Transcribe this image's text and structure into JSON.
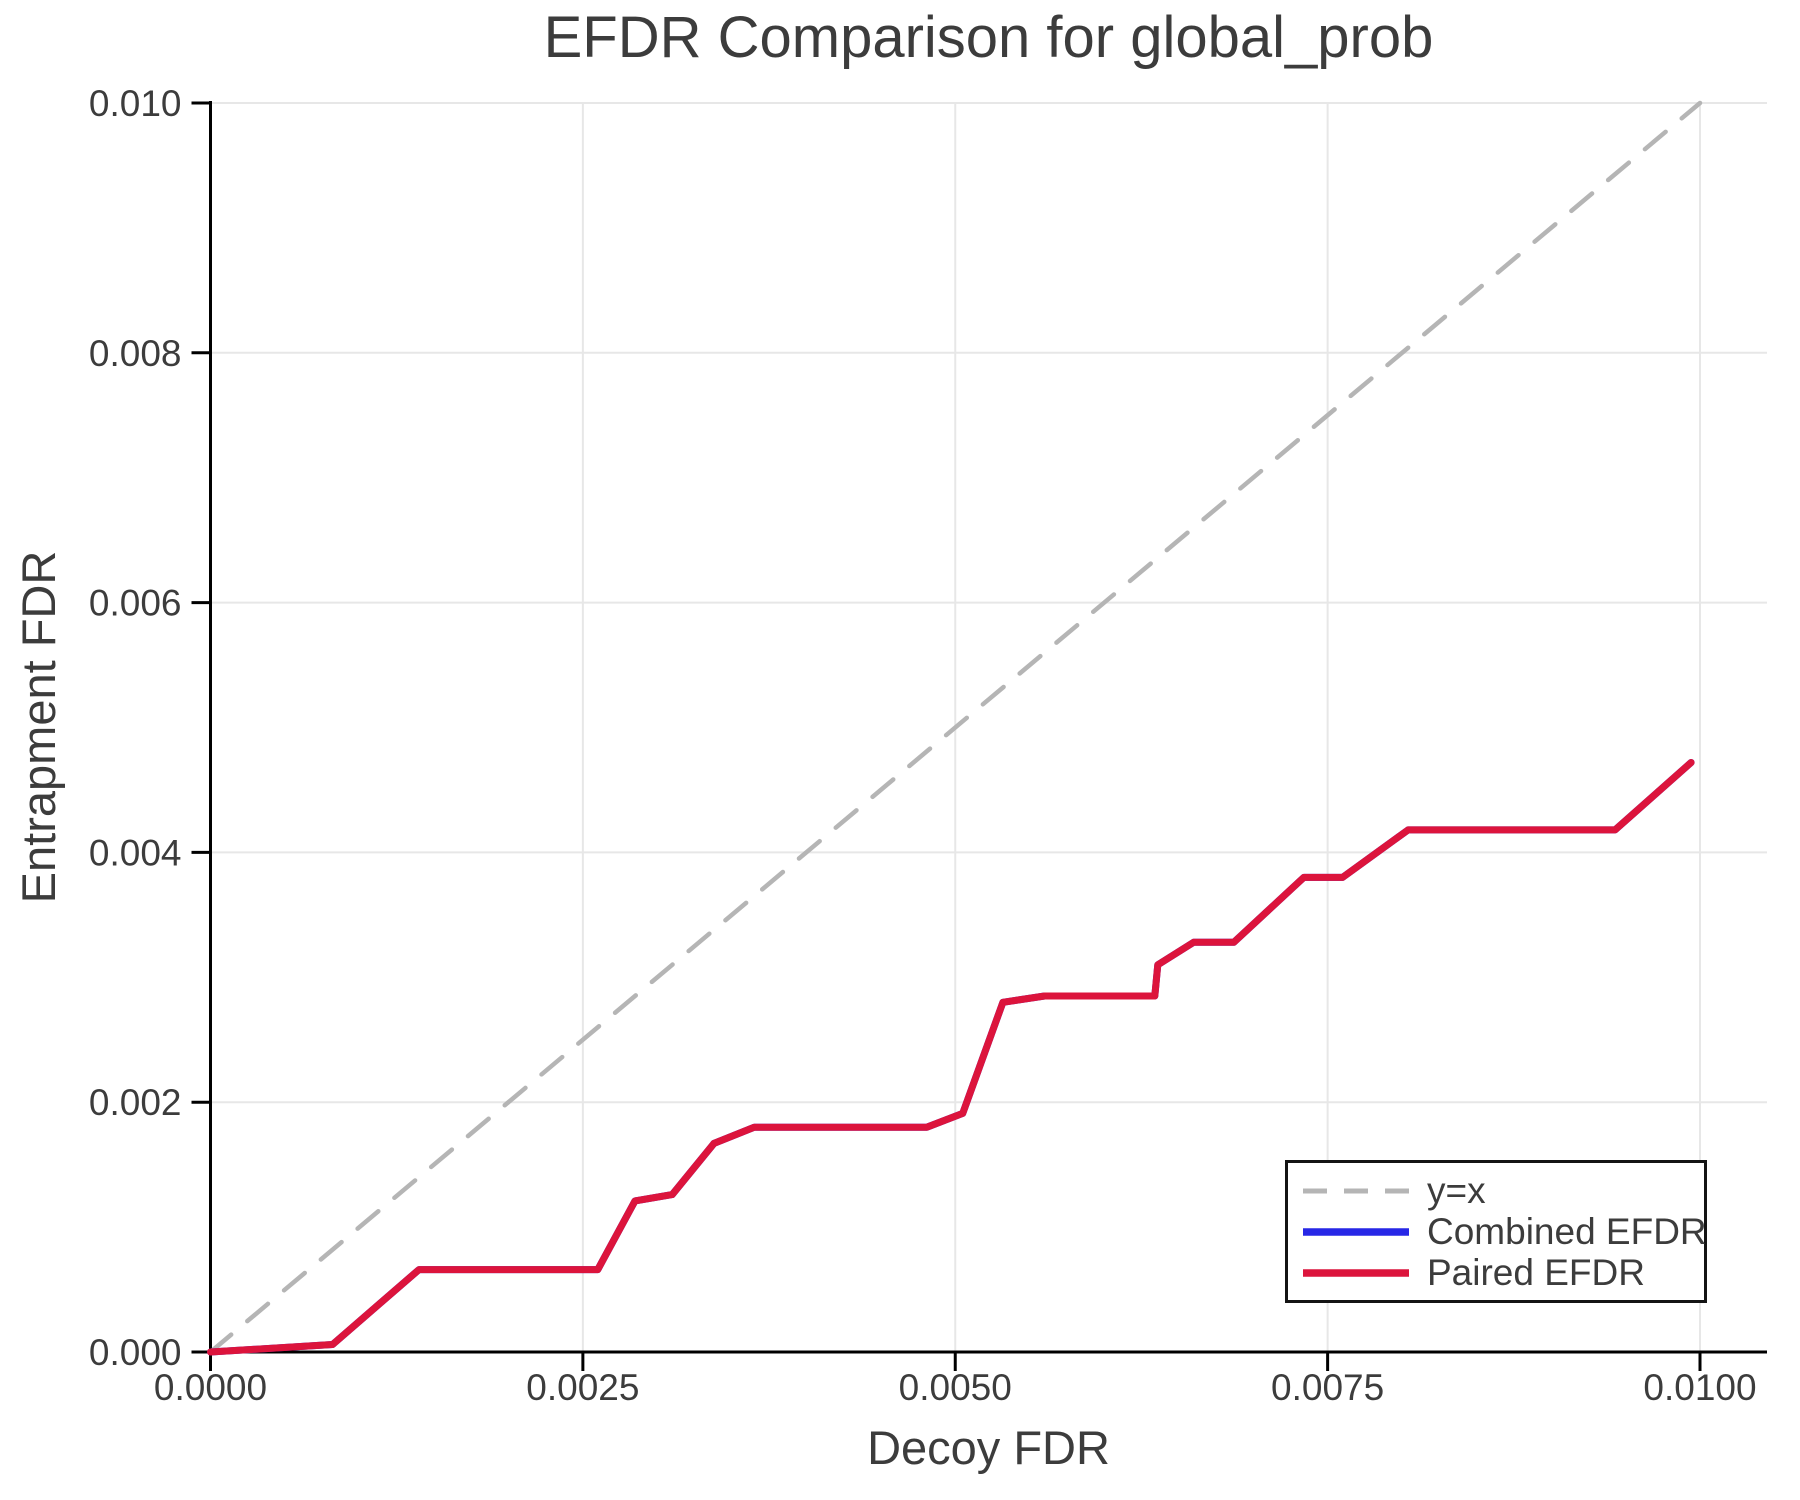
{
  "chart_data": {
    "type": "line",
    "title": "EFDR Comparison for global_prob",
    "xlabel": "Decoy FDR",
    "ylabel": "Entrapment FDR",
    "xlim": [
      0.0,
      0.0105
    ],
    "ylim": [
      0.0,
      0.01
    ],
    "grid": true,
    "legend_position": "bottom-right",
    "x_ticks": {
      "values": [
        0.0,
        0.0025,
        0.005,
        0.0075,
        0.01
      ],
      "labels": [
        "0.0000",
        "0.0025",
        "0.0050",
        "0.0075",
        "0.0100"
      ]
    },
    "y_ticks": {
      "values": [
        0.0,
        0.002,
        0.004,
        0.006,
        0.008,
        0.01
      ],
      "labels": [
        "0.000",
        "0.002",
        "0.004",
        "0.006",
        "0.008",
        "0.010"
      ]
    },
    "series": [
      {
        "name": "y=x",
        "color": "#b5b5b5",
        "style": "dashed",
        "width": 4.5,
        "points": [
          [
            0.0,
            0.0
          ],
          [
            0.01,
            0.01
          ]
        ]
      },
      {
        "name": "Combined EFDR",
        "color": "#2727e6",
        "style": "solid",
        "width": 7,
        "points": [
          [
            0.0,
            0.0
          ],
          [
            0.00082,
            6e-05
          ],
          [
            0.0014,
            0.00066
          ],
          [
            0.0026,
            0.00066
          ],
          [
            0.00285,
            0.00121
          ],
          [
            0.0031,
            0.00126
          ],
          [
            0.00338,
            0.00167
          ],
          [
            0.00365,
            0.0018
          ],
          [
            0.00481,
            0.0018
          ],
          [
            0.00505,
            0.00191
          ],
          [
            0.00532,
            0.0028
          ],
          [
            0.0056,
            0.00285
          ],
          [
            0.00634,
            0.00285
          ],
          [
            0.00636,
            0.0031
          ],
          [
            0.0066,
            0.00328
          ],
          [
            0.00687,
            0.00328
          ],
          [
            0.00734,
            0.0038
          ],
          [
            0.0076,
            0.0038
          ],
          [
            0.00804,
            0.00418
          ],
          [
            0.00943,
            0.00418
          ],
          [
            0.00994,
            0.00472
          ]
        ]
      },
      {
        "name": "Paired EFDR",
        "color": "#dc143c",
        "style": "solid",
        "width": 7,
        "points": [
          [
            0.0,
            0.0
          ],
          [
            0.00082,
            6e-05
          ],
          [
            0.0014,
            0.00066
          ],
          [
            0.0026,
            0.00066
          ],
          [
            0.00285,
            0.00121
          ],
          [
            0.0031,
            0.00126
          ],
          [
            0.00338,
            0.00167
          ],
          [
            0.00365,
            0.0018
          ],
          [
            0.00481,
            0.0018
          ],
          [
            0.00505,
            0.00191
          ],
          [
            0.00532,
            0.0028
          ],
          [
            0.0056,
            0.00285
          ],
          [
            0.00634,
            0.00285
          ],
          [
            0.00636,
            0.0031
          ],
          [
            0.0066,
            0.00328
          ],
          [
            0.00687,
            0.00328
          ],
          [
            0.00734,
            0.0038
          ],
          [
            0.0076,
            0.0038
          ],
          [
            0.00804,
            0.00418
          ],
          [
            0.00943,
            0.00418
          ],
          [
            0.00994,
            0.00472
          ]
        ]
      }
    ],
    "style": {
      "grid_color": "#e7e7e7",
      "axis_color": "#000000",
      "text_color": "#3c3c3c",
      "background": "#ffffff"
    }
  }
}
